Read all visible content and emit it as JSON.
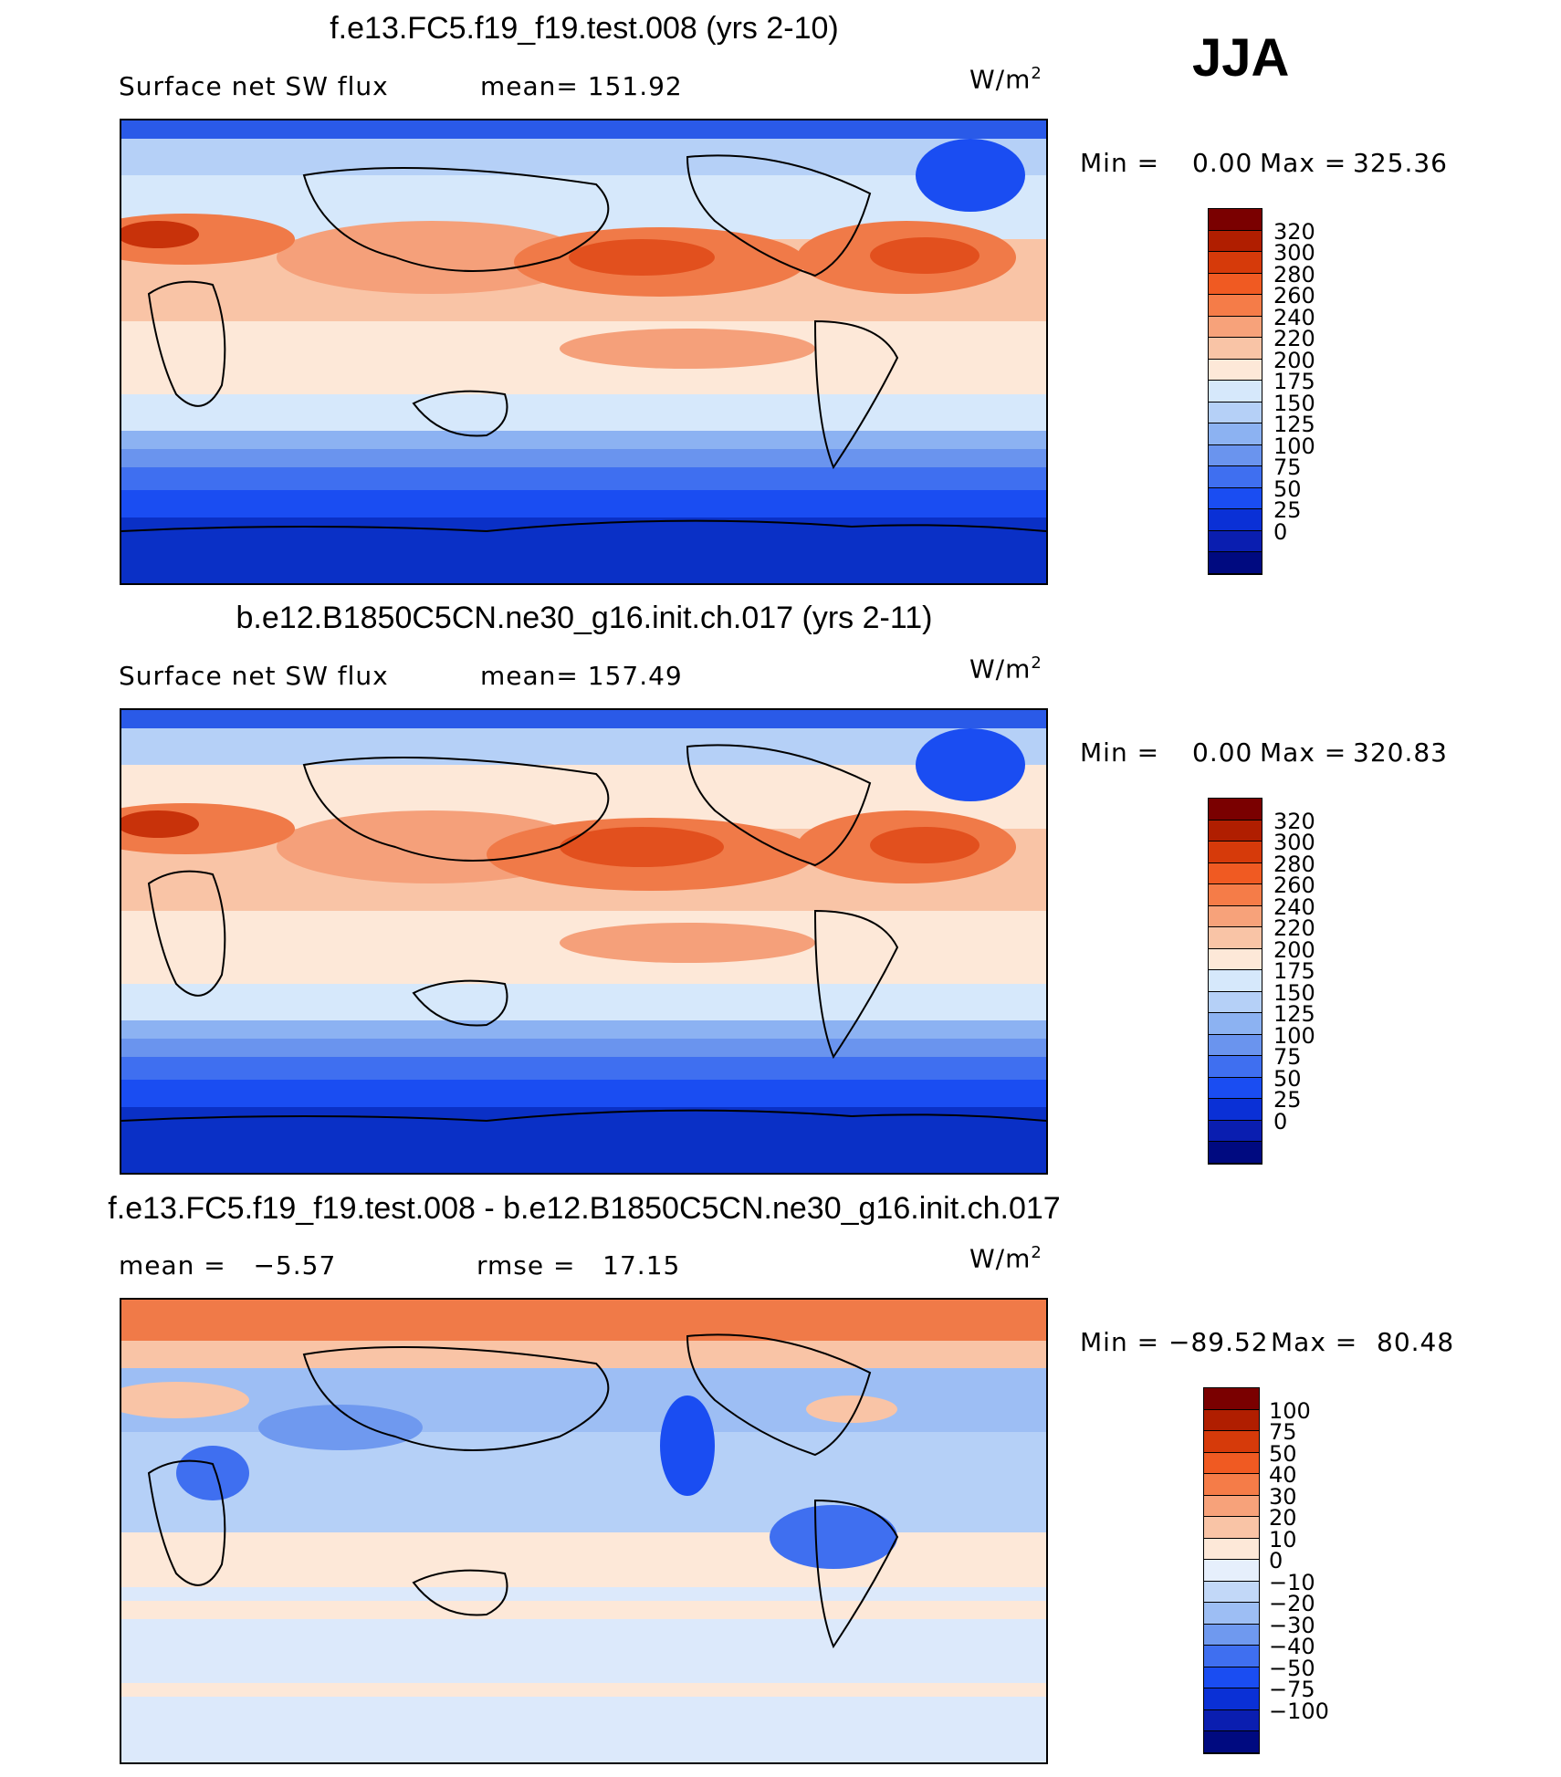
{
  "season": "JJA",
  "units_html": "W/m",
  "units_sup": "2",
  "panels": [
    {
      "title": "f.e13.FC5.f19_f19.test.008 (yrs 2-10)",
      "left_label": "Surface net SW flux",
      "right_label": "mean= 151.92",
      "min_label": "Min =",
      "min_value": "0.00",
      "max_label": "Max =",
      "max_value": "325.36",
      "colorbar": {
        "colors": [
          "#7a0000",
          "#b01e00",
          "#d63a0a",
          "#f05a22",
          "#f57c48",
          "#f7a27a",
          "#f9c4a6",
          "#fde8d8",
          "#d6e8fb",
          "#b5d0f7",
          "#8cb2f2",
          "#6a94ee",
          "#3f6ff0",
          "#1a4df2",
          "#0a30d6",
          "#0a1eb0",
          "#000a80"
        ],
        "labels": [
          "320",
          "300",
          "280",
          "260",
          "240",
          "220",
          "200",
          "175",
          "150",
          "125",
          "100",
          "75",
          "50",
          "25",
          "0"
        ]
      }
    },
    {
      "title": "b.e12.B1850C5CN.ne30_g16.init.ch.017 (yrs 2-11)",
      "left_label": "Surface net SW flux",
      "right_label": "mean= 157.49",
      "min_label": "Min =",
      "min_value": "0.00",
      "max_label": "Max =",
      "max_value": "320.83",
      "colorbar": {
        "colors": [
          "#7a0000",
          "#b01e00",
          "#d63a0a",
          "#f05a22",
          "#f57c48",
          "#f7a27a",
          "#f9c4a6",
          "#fde8d8",
          "#d6e8fb",
          "#b5d0f7",
          "#8cb2f2",
          "#6a94ee",
          "#3f6ff0",
          "#1a4df2",
          "#0a30d6",
          "#0a1eb0",
          "#000a80"
        ],
        "labels": [
          "320",
          "300",
          "280",
          "260",
          "240",
          "220",
          "200",
          "175",
          "150",
          "125",
          "100",
          "75",
          "50",
          "25",
          "0"
        ]
      }
    },
    {
      "title": "f.e13.FC5.f19_f19.test.008 - b.e12.B1850C5CN.ne30_g16.init.ch.017",
      "left_label": "mean =   −5.57",
      "right_label": "rmse =   17.15",
      "min_label": "Min =",
      "min_value": "−89.52",
      "max_label": "Max =",
      "max_value": "80.48",
      "colorbar": {
        "colors": [
          "#7a0000",
          "#b01e00",
          "#d63a0a",
          "#f05a22",
          "#f57c48",
          "#f7a27a",
          "#f9c4a6",
          "#fde8d8",
          "#e6effc",
          "#c2d8f8",
          "#9dbef4",
          "#6f99ef",
          "#3f6ff0",
          "#1a4df2",
          "#0a30d6",
          "#0a1eb0",
          "#000a80"
        ],
        "labels": [
          "100",
          "75",
          "50",
          "40",
          "30",
          "20",
          "10",
          "0",
          "−10",
          "−20",
          "−30",
          "−40",
          "−50",
          "−75",
          "−100"
        ]
      }
    }
  ]
}
